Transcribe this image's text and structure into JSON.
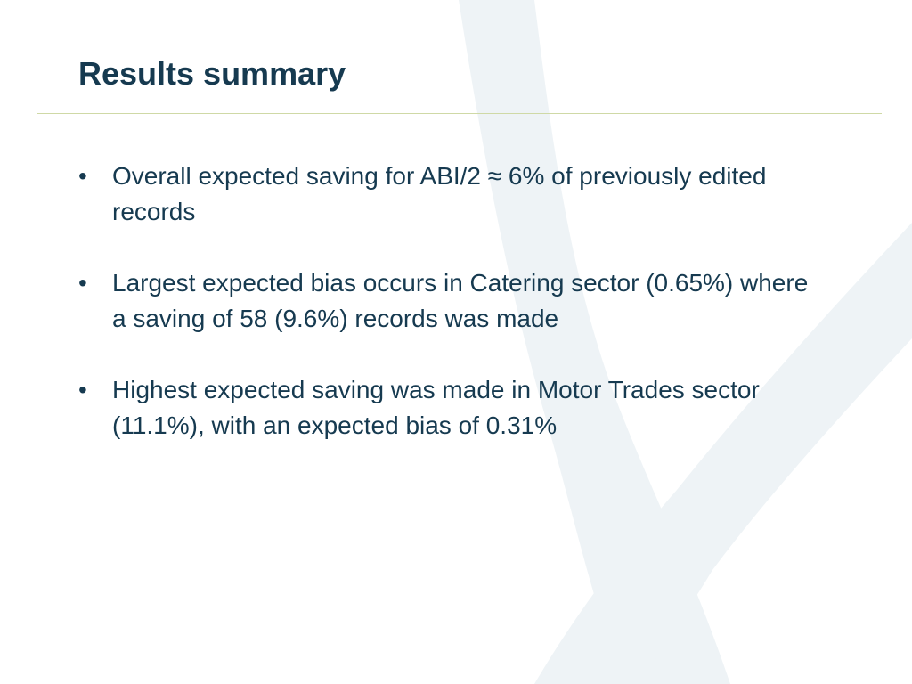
{
  "slide": {
    "title": "Results summary",
    "bullet_char": "•",
    "bullets": [
      "Overall expected saving for ABI/2 ≈ 6% of previously edited records",
      "Largest expected bias occurs in Catering sector (0.65%) where a saving of 58 (9.6%) records was made",
      "Highest expected saving was made in Motor Trades sector (11.1%), with an expected bias of 0.31%"
    ]
  },
  "colors": {
    "title_text": "#163a50",
    "body_text": "#163a50",
    "rule": "#cfd9a6",
    "watermark": "#eef3f6"
  },
  "icons": {
    "watermark": "x-logo-watermark"
  }
}
